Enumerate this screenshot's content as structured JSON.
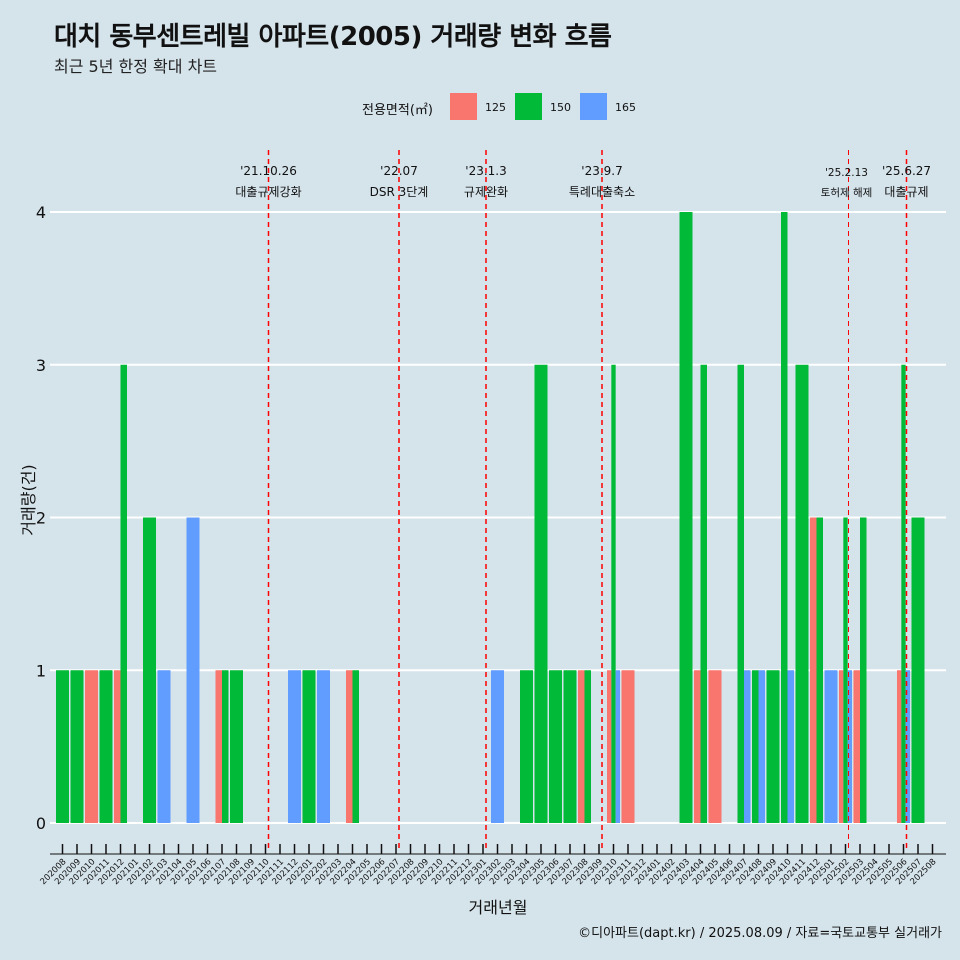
{
  "header": {
    "title": "대치 동부센트레빌 아파트(2005) 거래량 변화 흐름",
    "subtitle": "최근 5년 한정 확대 차트"
  },
  "legend": {
    "title": "전용면적(㎡)",
    "items": [
      {
        "label": "125",
        "color": "#F8766D"
      },
      {
        "label": "150",
        "color": "#00BA38"
      },
      {
        "label": "165",
        "color": "#619CFF"
      }
    ]
  },
  "caption": "©디아파트(dapt.kr) / 2025.08.09 / 자료=국토교통부 실거래가",
  "chart_data": {
    "type": "bar",
    "xlabel": "거래년월",
    "ylabel": "거래량(건)",
    "ylim": [
      0,
      4
    ],
    "y_ticks": [
      "0",
      "1",
      "2",
      "3",
      "4"
    ],
    "grid": true,
    "categories": [
      "202008",
      "202009",
      "202010",
      "202011",
      "202012",
      "202101",
      "202102",
      "202103",
      "202104",
      "202105",
      "202106",
      "202107",
      "202108",
      "202109",
      "202110",
      "202111",
      "202112",
      "202201",
      "202202",
      "202203",
      "202204",
      "202205",
      "202206",
      "202207",
      "202208",
      "202209",
      "202210",
      "202211",
      "202212",
      "202301",
      "202302",
      "202303",
      "202304",
      "202305",
      "202306",
      "202307",
      "202308",
      "202309",
      "202310",
      "202311",
      "202312",
      "202401",
      "202402",
      "202403",
      "202404",
      "202405",
      "202406",
      "202407",
      "202408",
      "202409",
      "202410",
      "202411",
      "202412",
      "202501",
      "202502",
      "202503",
      "202504",
      "202505",
      "202506",
      "202507",
      "202508"
    ],
    "series": [
      {
        "name": "125",
        "color": "#F8766D",
        "values": [
          0,
          0,
          1,
          0,
          1,
          0,
          0,
          0,
          0,
          0,
          0,
          1,
          0,
          0,
          0,
          0,
          0,
          0,
          0,
          0,
          1,
          0,
          0,
          0,
          0,
          0,
          0,
          0,
          0,
          0,
          0,
          0,
          0,
          0,
          0,
          0,
          1,
          0,
          1,
          1,
          0,
          0,
          0,
          0,
          1,
          1,
          0,
          0,
          0,
          0,
          0,
          0,
          2,
          0,
          1,
          1,
          0,
          0,
          1,
          0,
          0
        ]
      },
      {
        "name": "150",
        "color": "#00BA38",
        "values": [
          1,
          1,
          0,
          1,
          3,
          0,
          2,
          0,
          0,
          0,
          0,
          1,
          1,
          0,
          0,
          0,
          0,
          1,
          0,
          0,
          1,
          0,
          0,
          0,
          0,
          0,
          0,
          0,
          0,
          0,
          0,
          0,
          1,
          3,
          1,
          1,
          1,
          0,
          3,
          0,
          0,
          0,
          0,
          4,
          3,
          0,
          0,
          3,
          1,
          1,
          4,
          3,
          2,
          0,
          2,
          2,
          0,
          0,
          3,
          2,
          0
        ]
      },
      {
        "name": "165",
        "color": "#619CFF",
        "values": [
          0,
          0,
          0,
          0,
          0,
          0,
          0,
          1,
          0,
          2,
          0,
          0,
          0,
          0,
          0,
          0,
          1,
          0,
          1,
          0,
          0,
          0,
          0,
          0,
          0,
          0,
          0,
          0,
          0,
          0,
          1,
          0,
          0,
          0,
          0,
          0,
          0,
          0,
          1,
          0,
          0,
          0,
          0,
          0,
          0,
          0,
          0,
          1,
          1,
          0,
          1,
          0,
          0,
          1,
          1,
          0,
          0,
          0,
          1,
          0,
          0
        ]
      }
    ],
    "annotations": [
      {
        "at": "202110",
        "date": "'21.10.26",
        "label": "대출규제강화"
      },
      {
        "at": "202207",
        "date": "'22.07",
        "label": "DSR 3단계"
      },
      {
        "at": "202301",
        "date": "'23.1.3",
        "label": "규제완화"
      },
      {
        "at": "202309",
        "date": "'23.9.7",
        "label": "특례대출축소"
      },
      {
        "at": "202502",
        "date": "'25.2.13",
        "label": "토허제 해제"
      },
      {
        "at": "202506",
        "date": "'25.6.27",
        "label": "대출규제"
      }
    ],
    "annotation_color": "#FF0000"
  }
}
